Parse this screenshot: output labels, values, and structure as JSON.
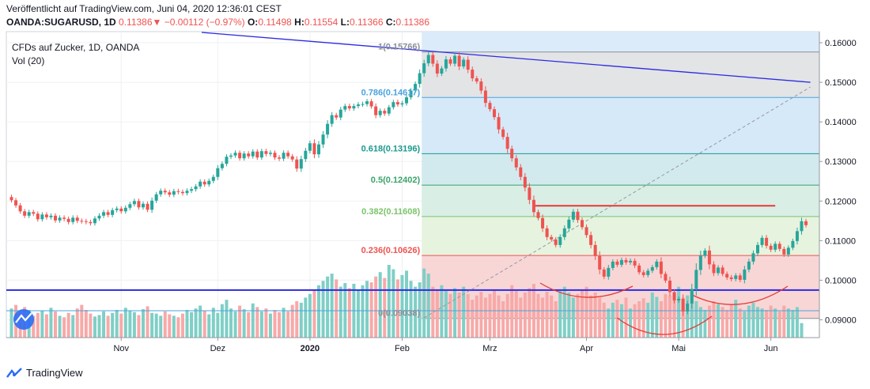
{
  "header": {
    "published": "Veröffentlicht auf TradingView.com, Juni 04, 2020 12:36:01 CEST",
    "symbol": "OANDA:SUGARUSD, 1D",
    "last": "0.11386",
    "change_arrow": "▼",
    "change": "−0.00112 (−0.97%)",
    "open_label": "O:",
    "open": "0.11498",
    "high_label": "H:",
    "high": "0.11554",
    "low_label": "L:",
    "low": "0.11366",
    "close_label": "C:",
    "close": "0.11386"
  },
  "footer": {
    "brand": "TradingView"
  },
  "colors": {
    "up": "#26a69a",
    "down": "#ef5350",
    "volume_up": "#7fcfc6",
    "volume_down": "#f7a9a8",
    "trendline": "#2b2be0",
    "pattern": "#e53935"
  },
  "chart_data": {
    "type": "candlestick",
    "title": "CFDs auf Zucker, 1D, OANDA",
    "subtitle": "Vol (20)",
    "x_ticks": [
      "Nov",
      "Dez",
      "2020",
      "Feb",
      "Mrz",
      "Apr",
      "Mai",
      "Jun"
    ],
    "x_tick_index": [
      25,
      47,
      68,
      89,
      109,
      131,
      152,
      173
    ],
    "y_ticks": [
      "0.16000",
      "0.15000",
      "0.14000",
      "0.13000",
      "0.12000",
      "0.11000",
      "0.10000",
      "0.09000"
    ],
    "y_tick_values": [
      0.16,
      0.15,
      0.14,
      0.13,
      0.12,
      0.11,
      0.1,
      0.09
    ],
    "ylim": [
      0.0855,
      0.1628
    ],
    "fibonacci": {
      "start_index": 94,
      "levels": [
        {
          "label": "1(0.15766)",
          "value": 0.15766
        },
        {
          "label": "0.786(0.14617)",
          "value": 0.14617
        },
        {
          "label": "0.618(0.13196)",
          "value": 0.13196
        },
        {
          "label": "0.5(0.12402)",
          "value": 0.12402
        },
        {
          "label": "0.382(0.11608)",
          "value": 0.11608
        },
        {
          "label": "0.236(0.10626)",
          "value": 0.10626
        },
        {
          "label": "0(0.09038)",
          "value": 0.09038
        }
      ]
    },
    "horizontal_line": {
      "value": 0.0975
    },
    "resistance_line": {
      "value": 0.1188,
      "from_index": 119,
      "to_index": 174
    },
    "trendline": {
      "from": [
        43,
        0.1626
      ],
      "to": [
        182,
        0.15
      ]
    },
    "diagonal": {
      "from": [
        94,
        0.0905
      ],
      "to": [
        182,
        0.1488
      ]
    },
    "closes": [
      0.1202,
      0.1189,
      0.1174,
      0.1163,
      0.1172,
      0.1168,
      0.1154,
      0.1166,
      0.1159,
      0.1163,
      0.1151,
      0.1158,
      0.1155,
      0.1147,
      0.1158,
      0.115,
      0.1149,
      0.1147,
      0.1144,
      0.1156,
      0.1163,
      0.1172,
      0.1165,
      0.1177,
      0.1181,
      0.1174,
      0.1183,
      0.1192,
      0.12,
      0.1184,
      0.1193,
      0.1178,
      0.1201,
      0.1217,
      0.1226,
      0.1222,
      0.1216,
      0.1225,
      0.1223,
      0.122,
      0.1226,
      0.123,
      0.1237,
      0.1249,
      0.1242,
      0.1251,
      0.1261,
      0.1283,
      0.1294,
      0.1312,
      0.1315,
      0.1322,
      0.1308,
      0.132,
      0.1313,
      0.1325,
      0.131,
      0.1326,
      0.1319,
      0.1322,
      0.131,
      0.1307,
      0.1322,
      0.1313,
      0.1305,
      0.1282,
      0.1306,
      0.1327,
      0.1346,
      0.1318,
      0.1343,
      0.1368,
      0.1395,
      0.1417,
      0.1411,
      0.1431,
      0.144,
      0.1434,
      0.144,
      0.1444,
      0.1445,
      0.1452,
      0.1439,
      0.1417,
      0.1428,
      0.1421,
      0.1437,
      0.145,
      0.1444,
      0.1447,
      0.1462,
      0.1479,
      0.1496,
      0.1523,
      0.1548,
      0.1569,
      0.1547,
      0.1522,
      0.1535,
      0.1558,
      0.1547,
      0.1567,
      0.154,
      0.1557,
      0.1532,
      0.151,
      0.1502,
      0.1479,
      0.1448,
      0.1432,
      0.1412,
      0.1381,
      0.1362,
      0.1332,
      0.1308,
      0.1285,
      0.1261,
      0.1234,
      0.1203,
      0.1172,
      0.1157,
      0.1131,
      0.1109,
      0.1103,
      0.1089,
      0.1109,
      0.1131,
      0.1153,
      0.1173,
      0.1152,
      0.1134,
      0.1114,
      0.1089,
      0.1061,
      0.1027,
      0.1009,
      0.1031,
      0.1047,
      0.1039,
      0.1051,
      0.1045,
      0.1049,
      0.1037,
      0.102,
      0.1013,
      0.1024,
      0.1033,
      0.1047,
      0.1016,
      0.0999,
      0.097,
      0.0949,
      0.0953,
      0.0921,
      0.0941,
      0.0978,
      0.1026,
      0.1062,
      0.1075,
      0.104,
      0.1018,
      0.1032,
      0.1016,
      0.1007,
      0.1003,
      0.1012,
      0.1001,
      0.1027,
      0.1047,
      0.1068,
      0.1089,
      0.1107,
      0.1087,
      0.1077,
      0.1092,
      0.1079,
      0.1065,
      0.1082,
      0.1099,
      0.1124,
      0.1149,
      0.1139
    ],
    "volumes": [
      0.4,
      0.45,
      0.35,
      0.42,
      0.38,
      0.3,
      0.34,
      0.37,
      0.32,
      0.41,
      0.36,
      0.3,
      0.28,
      0.34,
      0.31,
      0.4,
      0.45,
      0.38,
      0.33,
      0.29,
      0.31,
      0.36,
      0.3,
      0.34,
      0.38,
      0.33,
      0.41,
      0.37,
      0.35,
      0.31,
      0.39,
      0.43,
      0.34,
      0.33,
      0.3,
      0.36,
      0.32,
      0.3,
      0.28,
      0.33,
      0.38,
      0.35,
      0.4,
      0.44,
      0.37,
      0.32,
      0.41,
      0.34,
      0.46,
      0.52,
      0.4,
      0.36,
      0.44,
      0.39,
      0.35,
      0.47,
      0.42,
      0.36,
      0.4,
      0.33,
      0.38,
      0.35,
      0.41,
      0.36,
      0.45,
      0.5,
      0.48,
      0.55,
      0.6,
      0.66,
      0.72,
      0.78,
      0.84,
      0.88,
      0.8,
      0.7,
      0.75,
      0.68,
      0.74,
      0.65,
      0.72,
      0.78,
      0.76,
      0.84,
      0.9,
      0.82,
      1.0,
      0.94,
      0.8,
      0.86,
      0.92,
      0.78,
      0.7,
      0.76,
      0.95,
      0.88,
      0.7,
      0.66,
      0.72,
      0.65,
      0.6,
      0.68,
      0.62,
      0.7,
      0.6,
      0.52,
      0.58,
      0.63,
      0.55,
      0.6,
      0.66,
      0.58,
      0.5,
      0.6,
      0.72,
      0.64,
      0.55,
      0.62,
      0.68,
      0.74,
      0.6,
      0.55,
      0.63,
      0.58,
      0.5,
      0.64,
      0.7,
      0.62,
      0.55,
      0.6,
      0.66,
      0.7,
      0.58,
      0.62,
      0.55,
      0.48,
      0.4,
      0.48,
      0.52,
      0.46,
      0.55,
      0.4,
      0.46,
      0.5,
      0.54,
      0.48,
      0.62,
      0.56,
      0.5,
      0.6,
      0.58,
      0.62,
      0.7,
      0.55,
      0.58,
      0.64,
      0.5,
      0.42,
      0.38,
      0.44,
      0.5,
      0.46,
      0.42,
      0.38,
      0.46,
      0.52,
      0.4,
      0.36,
      0.44,
      0.48,
      0.42,
      0.4,
      0.38,
      0.44,
      0.4,
      0.36,
      0.44,
      0.4,
      0.38,
      0.42,
      0.2
    ]
  }
}
